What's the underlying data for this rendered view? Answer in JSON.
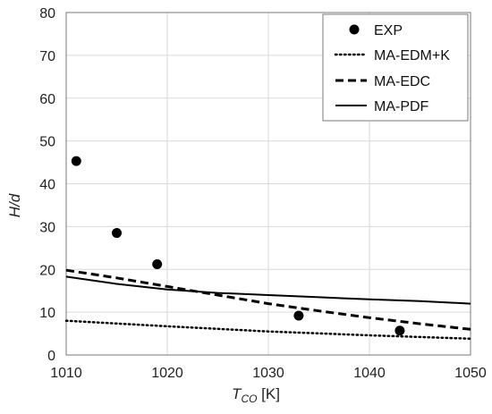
{
  "chart_data": {
    "type": "scatter",
    "xlabel": {
      "main": "T",
      "sub": "CO",
      "unit": " [K]"
    },
    "ylabel": "H/d",
    "xlim": [
      1010,
      1050
    ],
    "ylim": [
      0,
      80
    ],
    "x_ticks": [
      1010,
      1020,
      1030,
      1040,
      1050
    ],
    "y_ticks": [
      0,
      10,
      20,
      30,
      40,
      50,
      60,
      70,
      80
    ],
    "grid": true,
    "legend_position": "top-right",
    "series": [
      {
        "name": "EXP",
        "style": "markers",
        "color": "#000000",
        "x": [
          1011,
          1015,
          1019,
          1033,
          1043
        ],
        "y": [
          45.3,
          28.5,
          21.2,
          9.2,
          5.7
        ]
      },
      {
        "name": "MA-EDM+K",
        "style": "dotted",
        "color": "#000000",
        "x": [
          1010,
          1020,
          1030,
          1040,
          1050
        ],
        "y": [
          8.0,
          6.7,
          5.5,
          4.6,
          3.8
        ]
      },
      {
        "name": "MA-EDC",
        "style": "dashed",
        "color": "#000000",
        "x": [
          1010,
          1015,
          1020,
          1025,
          1030,
          1035,
          1040,
          1045,
          1050
        ],
        "y": [
          19.8,
          18.0,
          16.0,
          14.0,
          12.0,
          10.3,
          8.7,
          7.3,
          6.0
        ]
      },
      {
        "name": "MA-PDF",
        "style": "solid",
        "color": "#000000",
        "x": [
          1010,
          1015,
          1020,
          1025,
          1030,
          1035,
          1040,
          1045,
          1050
        ],
        "y": [
          18.3,
          16.6,
          15.3,
          14.5,
          14.0,
          13.5,
          13.0,
          12.6,
          12.0
        ]
      }
    ]
  }
}
